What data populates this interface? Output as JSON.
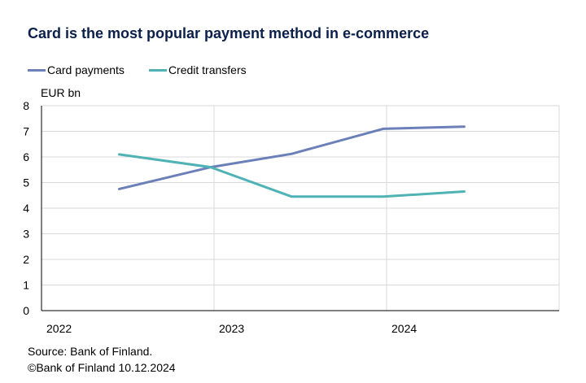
{
  "title": "Card is the most popular payment method in e-commerce",
  "unit_label": "EUR bn",
  "footer": {
    "source": "Source: Bank of Finland.",
    "copyright": "©Bank of Finland 10.12.2024"
  },
  "colors": {
    "card": "#6b7fb8",
    "credit": "#4fb3b5",
    "grid": "#d9d9d9",
    "title": "#0b1f4b"
  },
  "chart_data": {
    "type": "line",
    "x_ticks": [
      "2022",
      "2023",
      "2024"
    ],
    "x": [
      "2022H2",
      "2023H1",
      "2023H2",
      "2024H1",
      "2024H2"
    ],
    "series": [
      {
        "name": "Card payments",
        "values": [
          4.75,
          5.6,
          6.12,
          7.1,
          7.18
        ]
      },
      {
        "name": "Credit transfers",
        "values": [
          6.1,
          5.6,
          4.45,
          4.45,
          4.65
        ]
      }
    ],
    "ylim": [
      0,
      8
    ],
    "y_ticks": [
      0,
      1,
      2,
      3,
      4,
      5,
      6,
      7,
      8
    ],
    "ylabel": "EUR bn",
    "grid": true,
    "legend": "top-left"
  }
}
